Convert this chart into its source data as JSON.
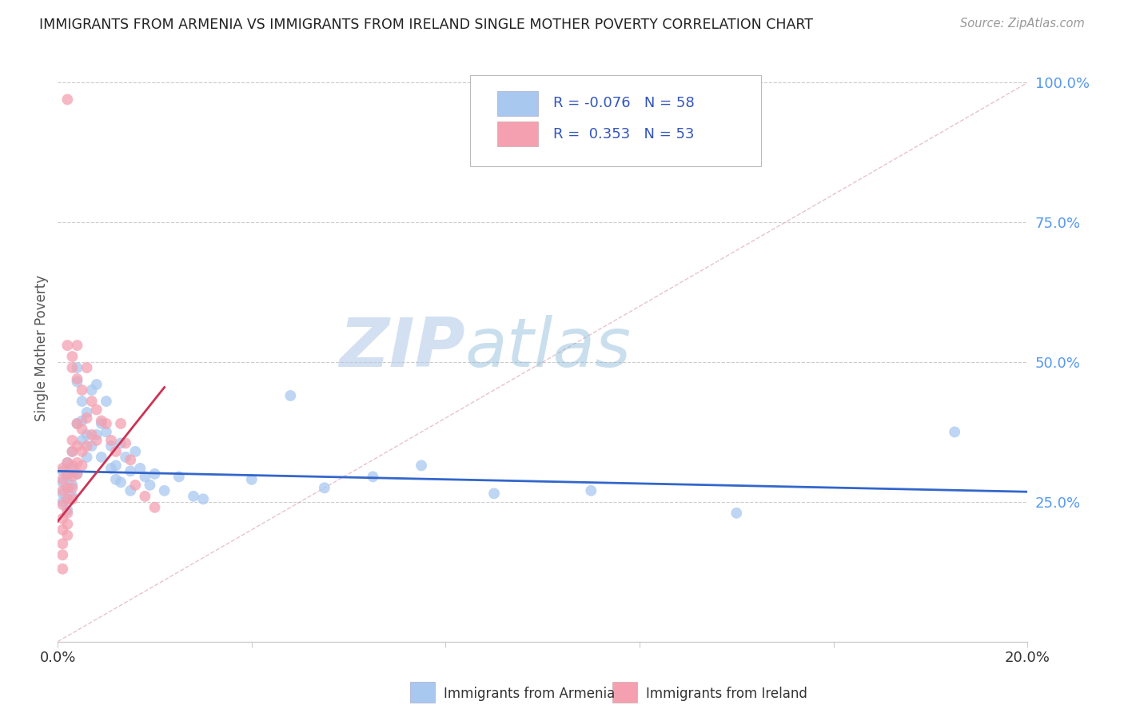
{
  "title": "IMMIGRANTS FROM ARMENIA VS IMMIGRANTS FROM IRELAND SINGLE MOTHER POVERTY CORRELATION CHART",
  "source": "Source: ZipAtlas.com",
  "ylabel": "Single Mother Poverty",
  "legend_armenia": "Immigrants from Armenia",
  "legend_ireland": "Immigrants from Ireland",
  "R_armenia": -0.076,
  "N_armenia": 58,
  "R_ireland": 0.353,
  "N_ireland": 53,
  "color_armenia": "#a8c8f0",
  "color_ireland": "#f4a0b0",
  "trendline_armenia_color": "#3366cc",
  "trendline_ireland_color": "#cc3355",
  "diagonal_color": "#cccccc",
  "watermark_zip": "ZIP",
  "watermark_atlas": "atlas",
  "background_color": "#ffffff",
  "armenia_scatter": [
    [
      0.001,
      0.305
    ],
    [
      0.001,
      0.285
    ],
    [
      0.001,
      0.265
    ],
    [
      0.001,
      0.25
    ],
    [
      0.002,
      0.32
    ],
    [
      0.002,
      0.295
    ],
    [
      0.002,
      0.275
    ],
    [
      0.002,
      0.255
    ],
    [
      0.002,
      0.235
    ],
    [
      0.003,
      0.34
    ],
    [
      0.003,
      0.31
    ],
    [
      0.003,
      0.28
    ],
    [
      0.003,
      0.26
    ],
    [
      0.004,
      0.49
    ],
    [
      0.004,
      0.465
    ],
    [
      0.004,
      0.39
    ],
    [
      0.004,
      0.3
    ],
    [
      0.005,
      0.43
    ],
    [
      0.005,
      0.395
    ],
    [
      0.005,
      0.36
    ],
    [
      0.006,
      0.41
    ],
    [
      0.006,
      0.37
    ],
    [
      0.006,
      0.33
    ],
    [
      0.007,
      0.45
    ],
    [
      0.007,
      0.35
    ],
    [
      0.008,
      0.46
    ],
    [
      0.008,
      0.37
    ],
    [
      0.009,
      0.39
    ],
    [
      0.009,
      0.33
    ],
    [
      0.01,
      0.43
    ],
    [
      0.01,
      0.375
    ],
    [
      0.011,
      0.35
    ],
    [
      0.011,
      0.31
    ],
    [
      0.012,
      0.315
    ],
    [
      0.012,
      0.29
    ],
    [
      0.013,
      0.355
    ],
    [
      0.013,
      0.285
    ],
    [
      0.014,
      0.33
    ],
    [
      0.015,
      0.305
    ],
    [
      0.015,
      0.27
    ],
    [
      0.016,
      0.34
    ],
    [
      0.017,
      0.31
    ],
    [
      0.018,
      0.295
    ],
    [
      0.019,
      0.28
    ],
    [
      0.02,
      0.3
    ],
    [
      0.022,
      0.27
    ],
    [
      0.025,
      0.295
    ],
    [
      0.028,
      0.26
    ],
    [
      0.03,
      0.255
    ],
    [
      0.04,
      0.29
    ],
    [
      0.048,
      0.44
    ],
    [
      0.055,
      0.275
    ],
    [
      0.065,
      0.295
    ],
    [
      0.075,
      0.315
    ],
    [
      0.09,
      0.265
    ],
    [
      0.11,
      0.27
    ],
    [
      0.14,
      0.23
    ],
    [
      0.185,
      0.375
    ]
  ],
  "ireland_scatter": [
    [
      0.001,
      0.31
    ],
    [
      0.001,
      0.29
    ],
    [
      0.001,
      0.27
    ],
    [
      0.001,
      0.245
    ],
    [
      0.001,
      0.22
    ],
    [
      0.001,
      0.2
    ],
    [
      0.001,
      0.175
    ],
    [
      0.001,
      0.155
    ],
    [
      0.001,
      0.13
    ],
    [
      0.002,
      0.97
    ],
    [
      0.002,
      0.53
    ],
    [
      0.002,
      0.32
    ],
    [
      0.002,
      0.3
    ],
    [
      0.002,
      0.275
    ],
    [
      0.002,
      0.255
    ],
    [
      0.002,
      0.23
    ],
    [
      0.002,
      0.21
    ],
    [
      0.002,
      0.19
    ],
    [
      0.003,
      0.51
    ],
    [
      0.003,
      0.49
    ],
    [
      0.003,
      0.36
    ],
    [
      0.003,
      0.34
    ],
    [
      0.003,
      0.315
    ],
    [
      0.003,
      0.295
    ],
    [
      0.003,
      0.275
    ],
    [
      0.003,
      0.255
    ],
    [
      0.004,
      0.53
    ],
    [
      0.004,
      0.47
    ],
    [
      0.004,
      0.39
    ],
    [
      0.004,
      0.35
    ],
    [
      0.004,
      0.32
    ],
    [
      0.004,
      0.3
    ],
    [
      0.005,
      0.45
    ],
    [
      0.005,
      0.38
    ],
    [
      0.005,
      0.34
    ],
    [
      0.005,
      0.315
    ],
    [
      0.006,
      0.49
    ],
    [
      0.006,
      0.4
    ],
    [
      0.006,
      0.35
    ],
    [
      0.007,
      0.43
    ],
    [
      0.007,
      0.37
    ],
    [
      0.008,
      0.415
    ],
    [
      0.008,
      0.36
    ],
    [
      0.009,
      0.395
    ],
    [
      0.01,
      0.39
    ],
    [
      0.011,
      0.36
    ],
    [
      0.012,
      0.34
    ],
    [
      0.013,
      0.39
    ],
    [
      0.014,
      0.355
    ],
    [
      0.015,
      0.325
    ],
    [
      0.016,
      0.28
    ],
    [
      0.018,
      0.26
    ],
    [
      0.02,
      0.24
    ]
  ],
  "xlim": [
    0.0,
    0.2
  ],
  "ylim": [
    0.0,
    1.05
  ]
}
